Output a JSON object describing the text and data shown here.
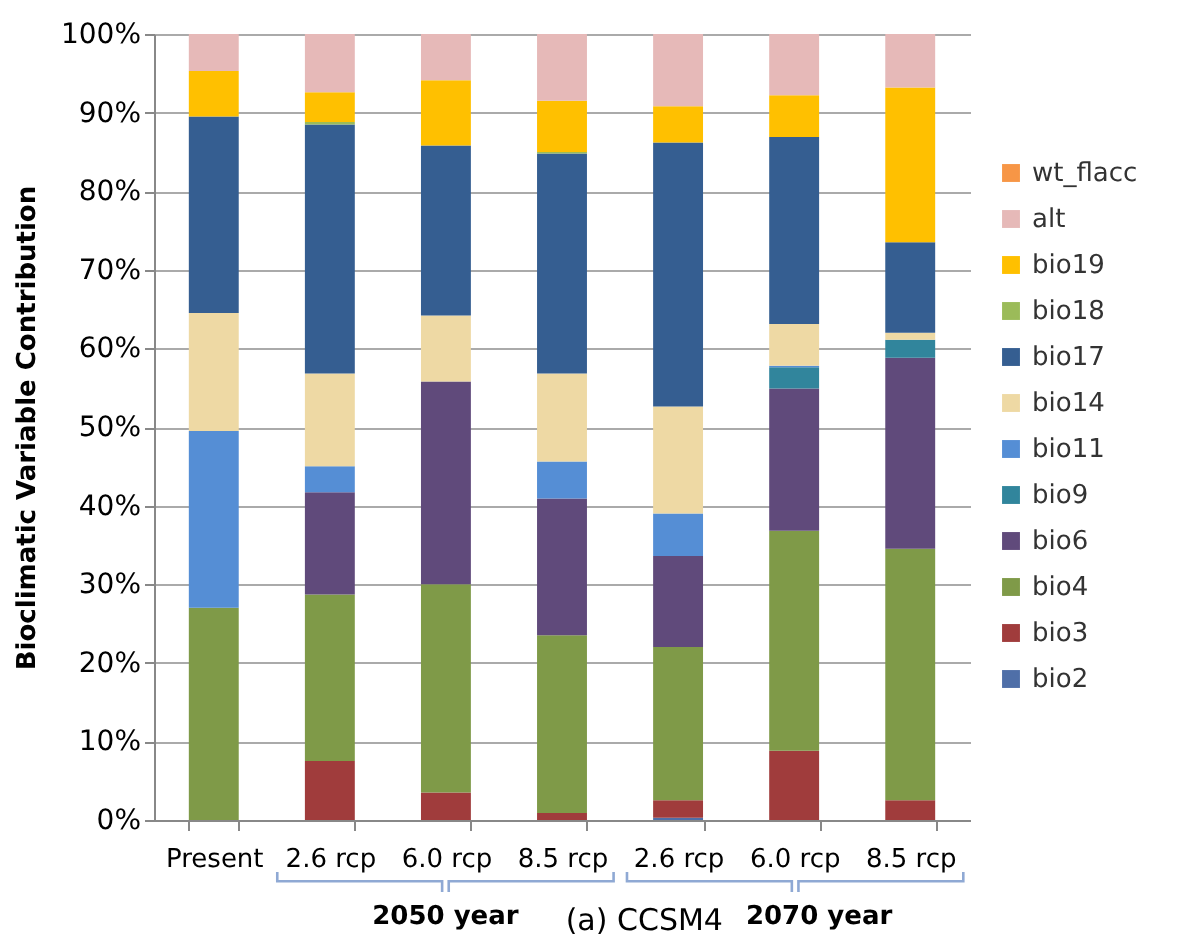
{
  "chart_data": {
    "type": "bar",
    "stacked": true,
    "ylabel": "Bioclimatic Variable Contribution",
    "categories": [
      "Present",
      "2.6 rcp",
      "6.0 rcp",
      "8.5 rcp",
      "2.6 rcp",
      "6.0 rcp",
      "8.5 rcp"
    ],
    "series": [
      {
        "name": "bio2",
        "color": "#4f6fa8",
        "values": [
          0,
          0,
          0,
          0,
          0.3,
          0,
          0
        ]
      },
      {
        "name": "bio3",
        "color": "#a03c3c",
        "values": [
          0,
          7.5,
          3.5,
          0.9,
          2.2,
          8.8,
          2.5
        ]
      },
      {
        "name": "bio4",
        "color": "#7f9a48",
        "values": [
          27,
          21.2,
          26.5,
          22.6,
          19.5,
          28,
          32
        ]
      },
      {
        "name": "bio6",
        "color": "#604a7b",
        "values": [
          0,
          13,
          25.8,
          17.4,
          11.6,
          18.1,
          24.3
        ]
      },
      {
        "name": "bio9",
        "color": "#31859c",
        "values": [
          0,
          0,
          0,
          0,
          0,
          2.7,
          2.3
        ]
      },
      {
        "name": "bio11",
        "color": "#558ed5",
        "values": [
          22.5,
          3.3,
          0,
          4.7,
          5.4,
          0.2,
          0
        ]
      },
      {
        "name": "bio14",
        "color": "#eed9a4",
        "values": [
          15,
          11.8,
          8.4,
          11.2,
          13.6,
          5.3,
          0.9
        ]
      },
      {
        "name": "bio17",
        "color": "#355e91",
        "values": [
          25,
          31.7,
          21.6,
          28,
          33.6,
          23.8,
          11.5
        ]
      },
      {
        "name": "bio18",
        "color": "#9bbb59",
        "values": [
          0,
          0.3,
          0,
          0.2,
          0,
          0,
          0
        ]
      },
      {
        "name": "bio19",
        "color": "#ffc000",
        "values": [
          5.8,
          3.8,
          8.3,
          6.5,
          4.6,
          5.3,
          19.7
        ]
      },
      {
        "name": "alt",
        "color": "#e6b9b8",
        "values": [
          4.7,
          7.4,
          5.9,
          8.5,
          9.2,
          7.8,
          6.8
        ]
      },
      {
        "name": "wt_flacc",
        "color": "#f79646",
        "values": [
          0,
          0,
          0,
          0,
          0,
          0,
          0
        ]
      }
    ],
    "ylim": [
      0,
      100
    ],
    "yticks": [
      {
        "value": 0,
        "label": "0%"
      },
      {
        "value": 10,
        "label": "10%"
      },
      {
        "value": 20,
        "label": "20%"
      },
      {
        "value": 30,
        "label": "30%"
      },
      {
        "value": 40,
        "label": "40%"
      },
      {
        "value": 50,
        "label": "50%"
      },
      {
        "value": 60,
        "label": "60%"
      },
      {
        "value": 70,
        "label": "70%"
      },
      {
        "value": 80,
        "label": "80%"
      },
      {
        "value": 90,
        "label": "90%"
      },
      {
        "value": 100,
        "label": "100%"
      }
    ],
    "grid": "y",
    "legend": "right",
    "annotations": [
      "2050 year",
      "(a) CCSM4",
      "2070 year"
    ]
  }
}
